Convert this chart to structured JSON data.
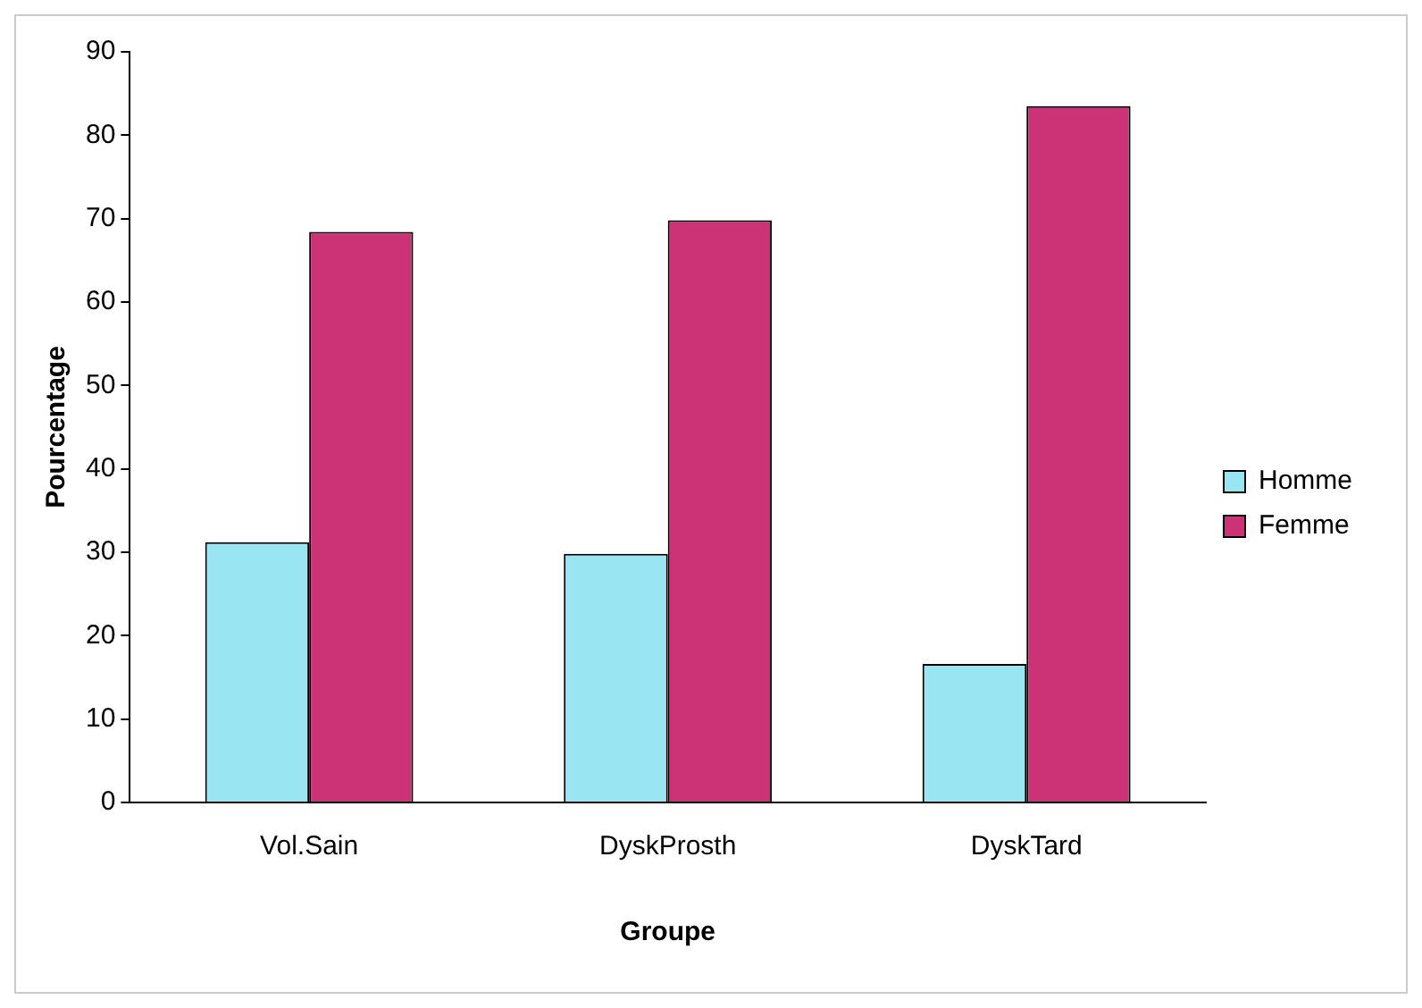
{
  "chart_data": {
    "type": "bar",
    "xlabel": "Groupe",
    "ylabel": "Pourcentage",
    "categories": [
      "Vol.Sain",
      "DyskProsth",
      "DyskTard"
    ],
    "series": [
      {
        "name": "Homme",
        "color": "#99e6f2",
        "values": [
          31.2,
          29.8,
          16.6
        ]
      },
      {
        "name": "Femme",
        "color": "#cc3377",
        "values": [
          68.4,
          69.8,
          83.5
        ]
      }
    ],
    "ylim": [
      0,
      90
    ],
    "yticks": [
      0,
      10,
      20,
      30,
      40,
      50,
      60,
      70,
      80,
      90
    ],
    "grid": false,
    "legend": "right"
  }
}
